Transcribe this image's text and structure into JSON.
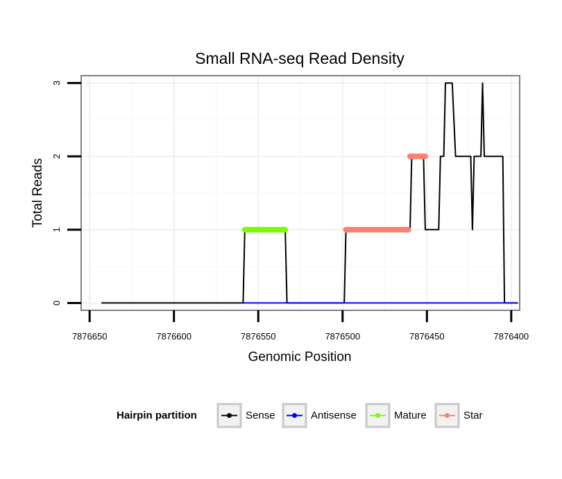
{
  "chart_data": {
    "type": "line",
    "title": "Small RNA-seq Read Density",
    "xlabel": "Genomic Position",
    "ylabel": "Total Reads",
    "x_reversed": true,
    "xlim": [
      7876655,
      7876395
    ],
    "ylim": [
      -0.1,
      3.1
    ],
    "x_ticks": [
      7876650,
      7876600,
      7876550,
      7876500,
      7876450,
      7876400
    ],
    "x_tick_labels": [
      "7876650",
      "7876600",
      "7876550",
      "7876500",
      "7876450",
      "7876400"
    ],
    "y_ticks": [
      0,
      1,
      2,
      3
    ],
    "y_tick_labels": [
      "0",
      "1",
      "2",
      "3"
    ],
    "grid": true,
    "legend": {
      "title": "Hairpin partition",
      "position": "bottom",
      "items": [
        {
          "label": "Sense",
          "color": "#000000"
        },
        {
          "label": "Antisense",
          "color": "#0000ff"
        },
        {
          "label": "Mature",
          "color": "#7cfc00"
        },
        {
          "label": "Star",
          "color": "#fa8072"
        }
      ]
    },
    "series": [
      {
        "name": "Sense",
        "color": "#000000",
        "style": "line",
        "x": [
          7876643,
          7876559,
          7876558,
          7876534,
          7876533,
          7876499,
          7876498,
          7876460,
          7876459,
          7876452,
          7876451,
          7876443,
          7876442,
          7876440,
          7876439,
          7876435,
          7876433,
          7876424,
          7876423,
          7876422,
          7876421,
          7876418,
          7876417,
          7876416,
          7876415,
          7876405,
          7876404,
          7876396
        ],
        "y": [
          0,
          0,
          1,
          1,
          0,
          0,
          1,
          1,
          2,
          2,
          1,
          1,
          2,
          2,
          3,
          3,
          2,
          2,
          1,
          2,
          2,
          2,
          3,
          2,
          2,
          2,
          0,
          0
        ]
      },
      {
        "name": "Antisense",
        "color": "#0000ff",
        "style": "line",
        "x": [
          7876559,
          7876397
        ],
        "y": [
          0,
          0
        ]
      },
      {
        "name": "Mature",
        "color": "#7cfc00",
        "style": "points",
        "x": [
          7876558,
          7876534
        ],
        "y": [
          1,
          1
        ]
      },
      {
        "name": "Star",
        "color": "#fa8072",
        "style": "points",
        "x": [
          7876498,
          7876470,
          7876461,
          7876460,
          7876451
        ],
        "y": [
          1,
          1,
          1,
          2,
          2
        ]
      }
    ]
  }
}
